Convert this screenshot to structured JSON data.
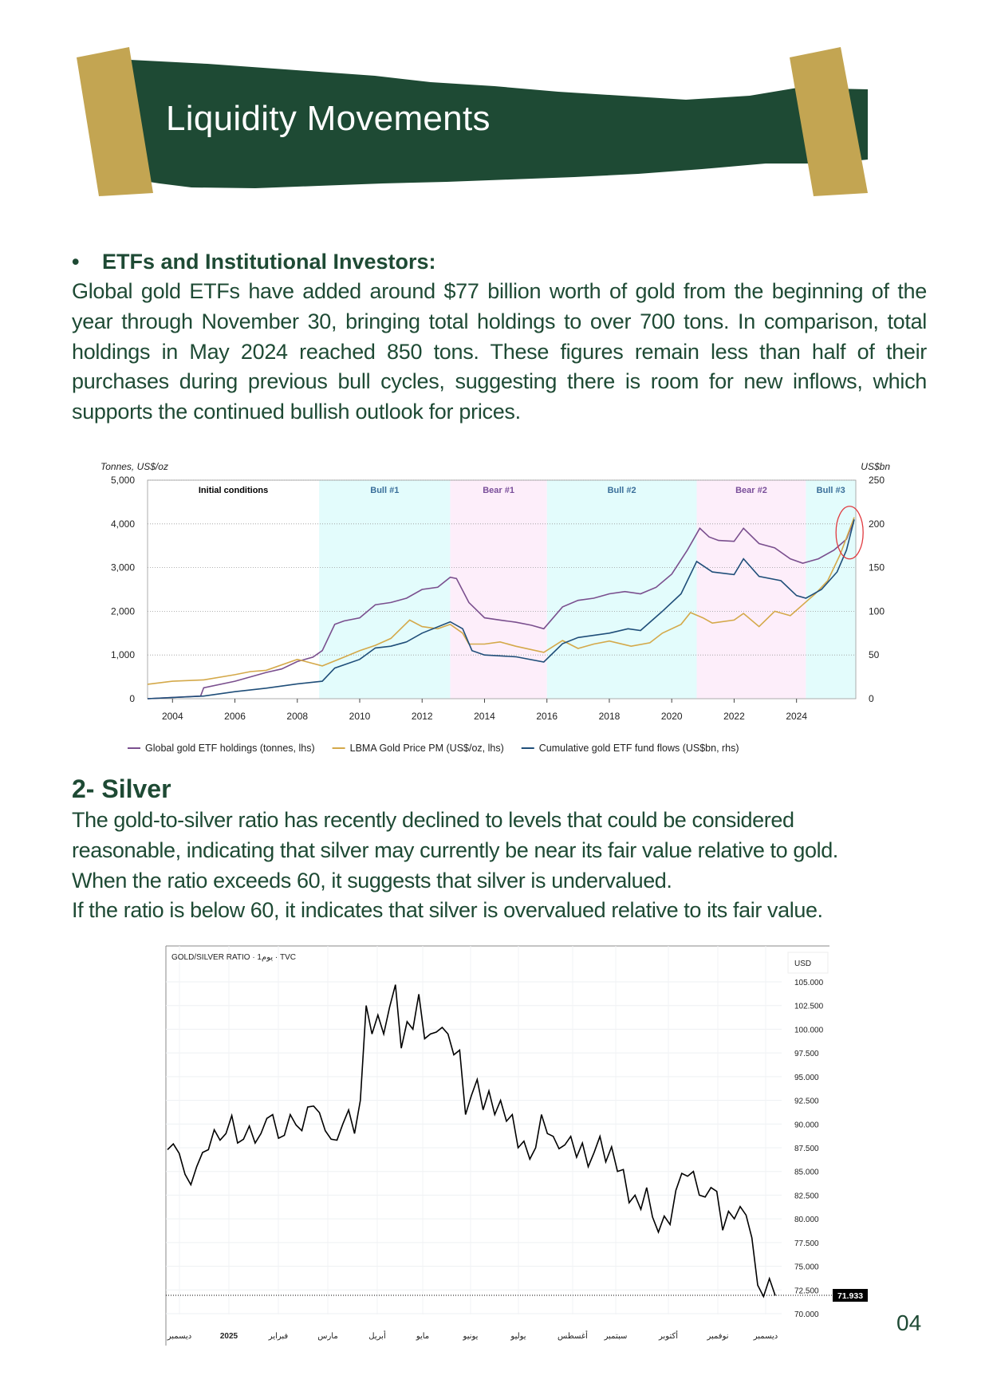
{
  "header": {
    "title": "Liquidity Movements",
    "colors": {
      "banner": "#1e4a34",
      "tape": "#c3a552"
    }
  },
  "section1": {
    "bullet": "•",
    "heading": "ETFs and Institutional Investors:",
    "paragraph": "Global gold ETFs have added around $77 billion worth of gold from the beginning of the year through November 30, bringing total holdings to over 700 tons. In comparison, total holdings in May 2024 reached 850 tons. These figures remain less than half of their purchases during previous bull cycles, suggesting there is room for new inflows, which supports the continued bullish outlook for prices."
  },
  "section2": {
    "heading": "2- Silver",
    "lines": [
      "The gold-to-silver ratio has recently declined to levels that could be considered",
      "reasonable, indicating that silver may currently be near its fair value relative to gold.",
      "When the ratio exceeds 60, it suggests that silver is undervalued.",
      "If the ratio is below 60, it indicates that silver is overvalued relative to its fair value."
    ]
  },
  "page_number": "04",
  "chart_data": [
    {
      "type": "line",
      "ylabel_left": "Tonnes, US$/oz",
      "ylabel_right": "US$bn",
      "xlim": [
        2003.2,
        2025.9
      ],
      "ylim_left": [
        0,
        5000
      ],
      "ylim_right": [
        0,
        250
      ],
      "xticks": [
        2004,
        2006,
        2008,
        2010,
        2012,
        2014,
        2016,
        2018,
        2020,
        2022,
        2024
      ],
      "yticks_left": [
        "0",
        "1,000",
        "2,000",
        "3,000",
        "4,000",
        "5,000"
      ],
      "yticks_right": [
        "0",
        "50",
        "100",
        "150",
        "200",
        "250"
      ],
      "grid": true,
      "legend_placement": "bottom",
      "regions": [
        {
          "label": "Initial conditions",
          "from": 2003.2,
          "to": 2008.7,
          "color": "#ffffff",
          "text_color": "#000000"
        },
        {
          "label": "Bull #1",
          "from": 2008.7,
          "to": 2012.9,
          "color": "#e3fcfc",
          "text_color": "#3a6f9a"
        },
        {
          "label": "Bear #1",
          "from": 2012.9,
          "to": 2016.0,
          "color": "#fdeefa",
          "text_color": "#7a4f9a"
        },
        {
          "label": "Bull #2",
          "from": 2016.0,
          "to": 2020.8,
          "color": "#e3fcfc",
          "text_color": "#3a6f9a"
        },
        {
          "label": "Bear #2",
          "from": 2020.8,
          "to": 2024.3,
          "color": "#fdeefa",
          "text_color": "#7a4f9a"
        },
        {
          "label": "Bull #3",
          "from": 2024.3,
          "to": 2025.9,
          "color": "#e3fcfc",
          "text_color": "#3a6f9a"
        }
      ],
      "annotation": {
        "type": "circle",
        "x": 2025.7,
        "y_left": 3800,
        "color": "#e0393e"
      },
      "series": [
        {
          "name": "Global gold ETF holdings (tonnes, lhs)",
          "axis": "left",
          "color": "#7a4f8e",
          "x": [
            2003.2,
            2004,
            2004.9,
            2005,
            2006,
            2006.5,
            2007,
            2007.5,
            2008,
            2008.5,
            2008.8,
            2009.2,
            2009.5,
            2010,
            2010.5,
            2011,
            2011.5,
            2012,
            2012.5,
            2012.9,
            2013.1,
            2013.5,
            2014,
            2014.5,
            2015,
            2015.5,
            2015.9,
            2016.5,
            2017,
            2017.5,
            2018,
            2018.5,
            2019,
            2019.5,
            2020,
            2020.5,
            2020.9,
            2021.2,
            2021.5,
            2022,
            2022.3,
            2022.8,
            2023.3,
            2023.8,
            2024.2,
            2024.7,
            2025.2,
            2025.6,
            2025.85
          ],
          "y": [
            0,
            30,
            60,
            250,
            400,
            500,
            600,
            680,
            850,
            950,
            1100,
            1700,
            1780,
            1850,
            2150,
            2200,
            2300,
            2500,
            2550,
            2780,
            2750,
            2200,
            1850,
            1800,
            1750,
            1680,
            1600,
            2100,
            2250,
            2300,
            2400,
            2450,
            2400,
            2550,
            2850,
            3400,
            3900,
            3700,
            3620,
            3600,
            3900,
            3550,
            3450,
            3200,
            3100,
            3200,
            3400,
            3650,
            4100
          ]
        },
        {
          "name": "LBMA Gold Price PM (US$/oz, lhs)",
          "axis": "left",
          "color": "#d4a94a",
          "x": [
            2003.2,
            2004,
            2005,
            2006,
            2006.5,
            2007,
            2008,
            2008.8,
            2009.5,
            2010,
            2010.5,
            2011,
            2011.6,
            2012,
            2012.5,
            2012.9,
            2013.3,
            2013.5,
            2014,
            2014.5,
            2015,
            2015.9,
            2016.5,
            2017,
            2017.5,
            2018,
            2018.7,
            2019.3,
            2019.7,
            2020.3,
            2020.6,
            2021,
            2021.3,
            2022,
            2022.3,
            2022.8,
            2023.3,
            2023.8,
            2024.2,
            2024.6,
            2025,
            2025.4,
            2025.85
          ],
          "y": [
            330,
            400,
            430,
            550,
            620,
            650,
            900,
            750,
            950,
            1100,
            1220,
            1380,
            1800,
            1650,
            1600,
            1700,
            1500,
            1250,
            1250,
            1300,
            1200,
            1060,
            1330,
            1150,
            1250,
            1320,
            1200,
            1280,
            1500,
            1700,
            1970,
            1850,
            1730,
            1800,
            1950,
            1650,
            2000,
            1900,
            2150,
            2400,
            2700,
            3300,
            4150
          ]
        },
        {
          "name": "Cumulative gold ETF fund flows (US$bn, rhs)",
          "axis": "right",
          "color": "#1f4e79",
          "x": [
            2003.2,
            2005,
            2006,
            2007,
            2008,
            2008.8,
            2009.2,
            2010,
            2010.5,
            2011,
            2011.5,
            2012,
            2012.9,
            2013.3,
            2013.6,
            2014,
            2015,
            2015.9,
            2016.5,
            2017,
            2018,
            2018.6,
            2019,
            2019.7,
            2020.3,
            2020.8,
            2021.3,
            2022,
            2022.3,
            2022.8,
            2023.5,
            2024,
            2024.3,
            2024.8,
            2025.3,
            2025.6,
            2025.85
          ],
          "y": [
            0,
            3,
            8,
            12,
            17,
            20,
            35,
            45,
            58,
            60,
            65,
            75,
            88,
            80,
            55,
            50,
            48,
            42,
            63,
            70,
            75,
            80,
            78,
            100,
            120,
            157,
            145,
            142,
            160,
            140,
            135,
            118,
            115,
            125,
            145,
            170,
            205
          ]
        }
      ]
    },
    {
      "type": "line",
      "title": "GOLD/SILVER RATIO · 1يوم · TVC",
      "currency": "USD",
      "ylim": [
        68.5,
        107
      ],
      "yticks": [
        "70.000",
        "72.500",
        "75.000",
        "77.500",
        "80.000",
        "82.500",
        "85.000",
        "87.500",
        "90.000",
        "92.500",
        "95.000",
        "97.500",
        "100.000",
        "102.500",
        "105.000"
      ],
      "xticks": [
        "ديسمبر",
        "2025",
        "فبراير",
        "مارس",
        "أبريل",
        "مايو",
        "يونيو",
        "يوليو",
        "أغسطس",
        "سبتمبر",
        "أكتوبر",
        "نوفمبر",
        "ديسمبر"
      ],
      "last_value": "71.933",
      "grid": true,
      "series_color": "#000000",
      "values": [
        87.3,
        87.9,
        86.9,
        84.7,
        83.6,
        85.5,
        87.0,
        87.3,
        89.4,
        88.3,
        89.0,
        90.9,
        88.0,
        88.4,
        89.8,
        88.0,
        89.0,
        90.6,
        91.0,
        88.5,
        88.8,
        91.0,
        89.9,
        89.3,
        91.8,
        91.9,
        91.2,
        89.3,
        88.4,
        88.3,
        90.0,
        91.5,
        89.0,
        92.5,
        102.5,
        99.5,
        101.5,
        99.5,
        102.3,
        104.7,
        98.0,
        100.8,
        100.0,
        103.7,
        99.0,
        99.5,
        99.7,
        100.2,
        99.5,
        97.3,
        97.8,
        91.0,
        93.0,
        94.7,
        91.5,
        93.5,
        91.0,
        92.5,
        90.3,
        91.0,
        87.5,
        88.2,
        86.3,
        87.5,
        91.0,
        89.0,
        88.7,
        87.4,
        87.8,
        88.7,
        86.5,
        88.0,
        85.5,
        87.0,
        88.7,
        86.0,
        87.6,
        85.0,
        85.2,
        81.7,
        82.5,
        81.0,
        83.3,
        80.2,
        78.6,
        80.3,
        79.4,
        83.0,
        84.8,
        84.5,
        85.0,
        82.5,
        82.3,
        83.3,
        82.9,
        78.8,
        80.8,
        80.0,
        81.3,
        80.4,
        78.0,
        73.0,
        71.8,
        73.7,
        71.9
      ]
    }
  ]
}
